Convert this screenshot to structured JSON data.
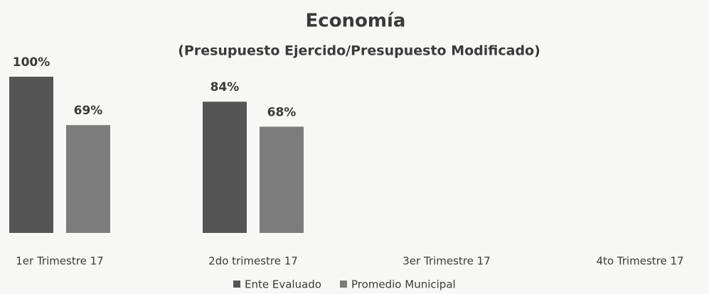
{
  "chart_data": {
    "type": "bar",
    "title": "Economía",
    "subtitle": "(Presupuesto Ejercido/Presupuesto Modificado)",
    "categories": [
      "1er Trimestre 17",
      "2do trimestre 17",
      "3er Trimestre 17",
      "4to Trimestre 17"
    ],
    "series": [
      {
        "name": "Ente Evaluado",
        "color": "#555555",
        "values": [
          100,
          84,
          null,
          null
        ],
        "value_labels": [
          "100%",
          "84%",
          null,
          null
        ]
      },
      {
        "name": "Promedio Municipal",
        "color": "#7c7c7c",
        "values": [
          69,
          68,
          null,
          null
        ],
        "value_labels": [
          "69%",
          "68%",
          null,
          null
        ]
      }
    ],
    "ylim": [
      0,
      100
    ],
    "legend": "bottom"
  }
}
